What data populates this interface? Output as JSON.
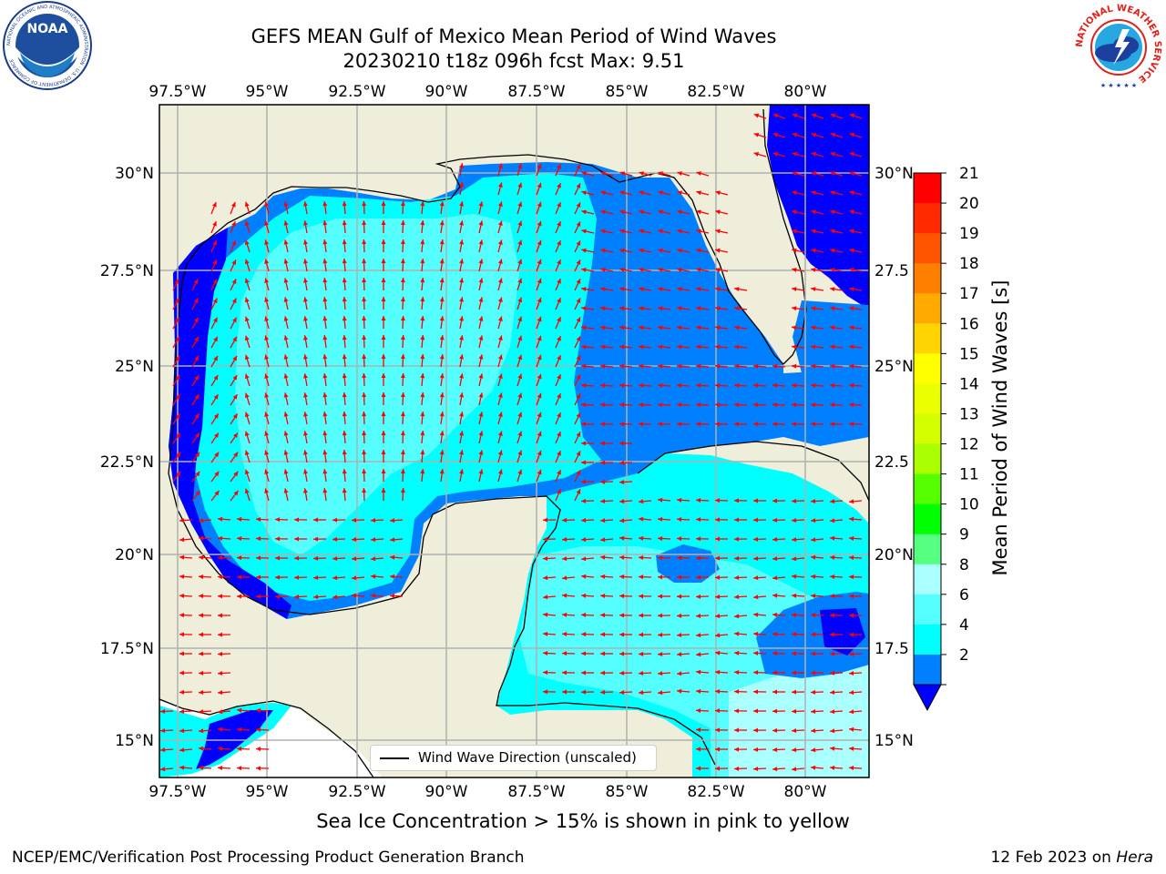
{
  "title": {
    "line1": "GEFS MEAN Gulf of Mexico Mean Period of Wind Waves",
    "line2": "20230210 t18z 096h fcst   Max: 9.51"
  },
  "axes": {
    "lon_labels": [
      "97.5°W",
      "95°W",
      "92.5°W",
      "90°W",
      "87.5°W",
      "85°W",
      "82.5°W",
      "80°W"
    ],
    "lat_labels": [
      "30°N",
      "27.5°N",
      "25°N",
      "22.5°N",
      "20°N",
      "17.5°N",
      "15°N"
    ],
    "lat_labels_right": [
      "30°N",
      "27.5",
      "25°N",
      "22.5",
      "20°N",
      "17.5",
      "15°N"
    ]
  },
  "colorbar": {
    "label": "Mean Period of Wind Waves [s]",
    "ticks": [
      "21",
      "20",
      "19",
      "18",
      "17",
      "16",
      "15",
      "14",
      "13",
      "12",
      "11",
      "10",
      "9",
      "8",
      "6",
      "4",
      "2"
    ],
    "colors": [
      "#ff0000",
      "#ff2a00",
      "#ff5500",
      "#ff7f00",
      "#ffaa00",
      "#ffd400",
      "#ffff00",
      "#eaff00",
      "#d4ff00",
      "#aaff00",
      "#55ff00",
      "#00ff00",
      "#55ff7f",
      "#aaffff",
      "#55ffff",
      "#00ffff",
      "#0080ff"
    ],
    "under_color": "#0000ff"
  },
  "colors": {
    "land": "#efeedb",
    "arrow": "#ff0000",
    "period_2_4": "#0080ff",
    "period_4_6": "#00ffff",
    "period_6_8": "#55ffff",
    "period_8_9": "#aaffff",
    "period_under_2": "#0000ff"
  },
  "legend": {
    "label": "Wind Wave Direction (unscaled)"
  },
  "footer": {
    "ice_note": "Sea Ice Concentration > 15% is shown in pink to yellow",
    "left": "NCEP/EMC/Verification Post Processing Product Generation Branch",
    "right_prefix": "12 Feb 2023 on ",
    "right_host": "Hera"
  },
  "logos": {
    "noaa": {
      "text": "NOAA",
      "ring_text": "NATIONAL OCEANIC AND ATMOSPHERIC ADMINISTRATION · U.S. DEPARTMENT OF COMMERCE"
    },
    "nws": {
      "ring_text": "NATIONAL WEATHER SERVICE"
    }
  }
}
